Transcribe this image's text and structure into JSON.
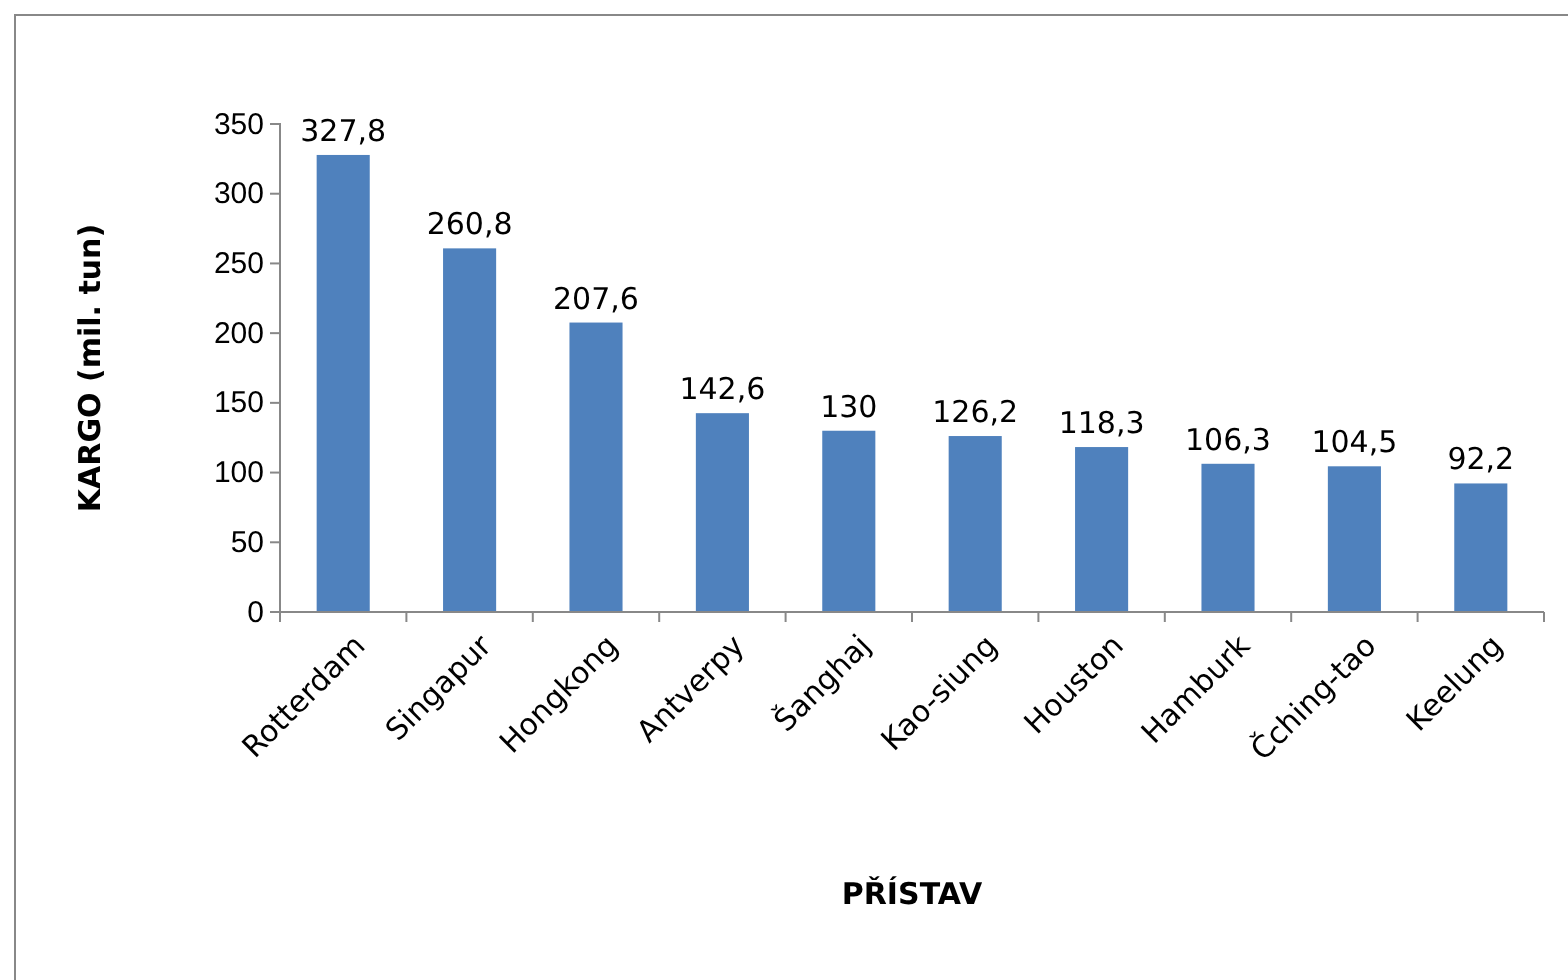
{
  "chart_data": {
    "type": "bar",
    "xlabel": "PŘÍSTAV",
    "ylabel": "KARGO (mil. tun)",
    "categories": [
      "Rotterdam",
      "Singapur",
      "Hongkong",
      "Antverpy",
      "Šanghaj",
      "Kao-siung",
      "Houston",
      "Hamburk",
      "Čching-tao",
      "Keelung"
    ],
    "values": [
      327.8,
      260.8,
      207.6,
      142.6,
      130,
      126.2,
      118.3,
      106.3,
      104.5,
      92.2
    ],
    "value_labels": [
      "327,8",
      "260,8",
      "207,6",
      "142,6",
      "130",
      "126,2",
      "118,3",
      "106,3",
      "104,5",
      "92,2"
    ],
    "color": "#4f81bd",
    "ylim": [
      0,
      350
    ],
    "yticks": [
      0,
      50,
      100,
      150,
      200,
      250,
      300,
      350
    ],
    "grid": false
  }
}
